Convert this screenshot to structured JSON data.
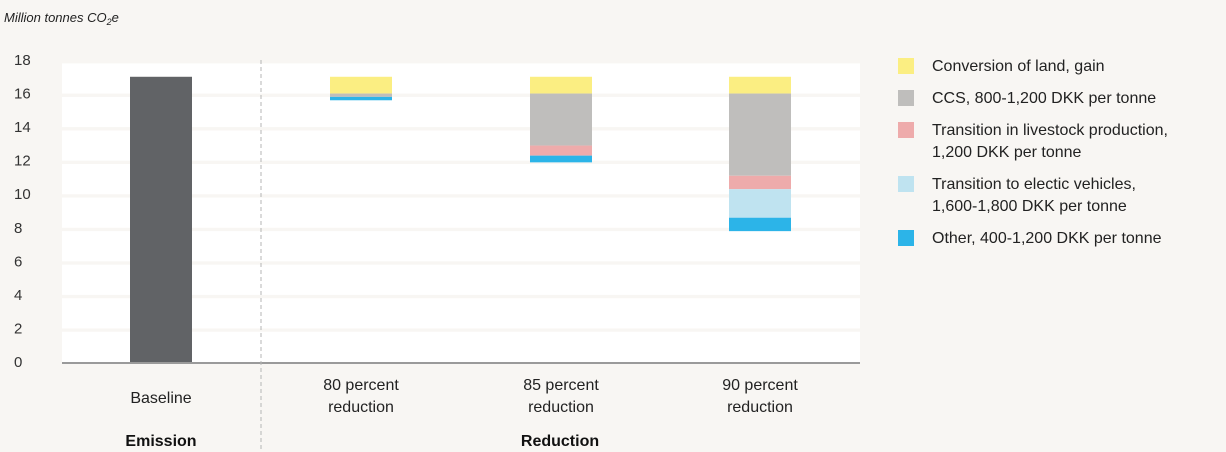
{
  "colors": {
    "baseline": "#616366",
    "land": "#fbee82",
    "ccs": "#bfbebc",
    "livestock": "#eeabab",
    "ev": "#bfe3f0",
    "other": "#2cb4e8",
    "grid": "#ffffff",
    "axis": "#9a9a9a"
  },
  "chart_data": {
    "type": "bar",
    "stacking": "waterfall",
    "ylabel_main": "Million tonnes CO",
    "ylabel_sub": "2",
    "ylabel_tail": "e",
    "ylim": [
      0,
      18
    ],
    "yticks": [
      "0",
      "2",
      "4",
      "6",
      "8",
      "10",
      "12",
      "14",
      "16",
      "18"
    ],
    "categories": [
      "Baseline",
      "80 percent reduction",
      "85 percent reduction",
      "90 percent reduction"
    ],
    "category_lines": [
      [
        "Baseline"
      ],
      [
        "80 percent",
        "reduction"
      ],
      [
        "85 percent",
        "reduction"
      ],
      [
        "90 percent",
        "reduction"
      ]
    ],
    "groups": [
      {
        "label": "Emission",
        "categories": [
          0
        ]
      },
      {
        "label": "Reduction",
        "categories": [
          1,
          2,
          3
        ]
      }
    ],
    "baseline": {
      "name": "Baseline",
      "value": 17.0
    },
    "series": [
      {
        "name": "Conversion of land, gain",
        "key": "land",
        "values": [
          0,
          1.0,
          1.0,
          1.0
        ]
      },
      {
        "name": "CCS, 800-1,200 DKK per tonne",
        "key": "ccs",
        "values": [
          0,
          0.2,
          3.1,
          4.9
        ]
      },
      {
        "name": "Transition in livestock production, 1,200 DKK per tonne",
        "key": "livestock",
        "values": [
          0,
          0,
          0.6,
          0.8
        ]
      },
      {
        "name": "Transition to electic vehicles, 1,600-1,800 DKK per tonne",
        "key": "ev",
        "values": [
          0,
          0,
          0,
          1.7
        ]
      },
      {
        "name": "Other, 400-1,200 DKK per tonne",
        "key": "other",
        "values": [
          0,
          0.2,
          0.4,
          0.8
        ]
      }
    ],
    "legend_position": "right",
    "grid": "horizontal bands"
  },
  "legend": [
    {
      "key": "land",
      "text": "Conversion of land, gain"
    },
    {
      "key": "ccs",
      "text": "CCS, 800-1,200 DKK per tonne"
    },
    {
      "key": "livestock",
      "text": "Transition in livestock production,\n1,200 DKK per tonne"
    },
    {
      "key": "ev",
      "text": "Transition to electic vehicles,\n1,600-1,800 DKK per tonne"
    },
    {
      "key": "other",
      "text": "Other, 400-1,200 DKK per tonne"
    }
  ]
}
